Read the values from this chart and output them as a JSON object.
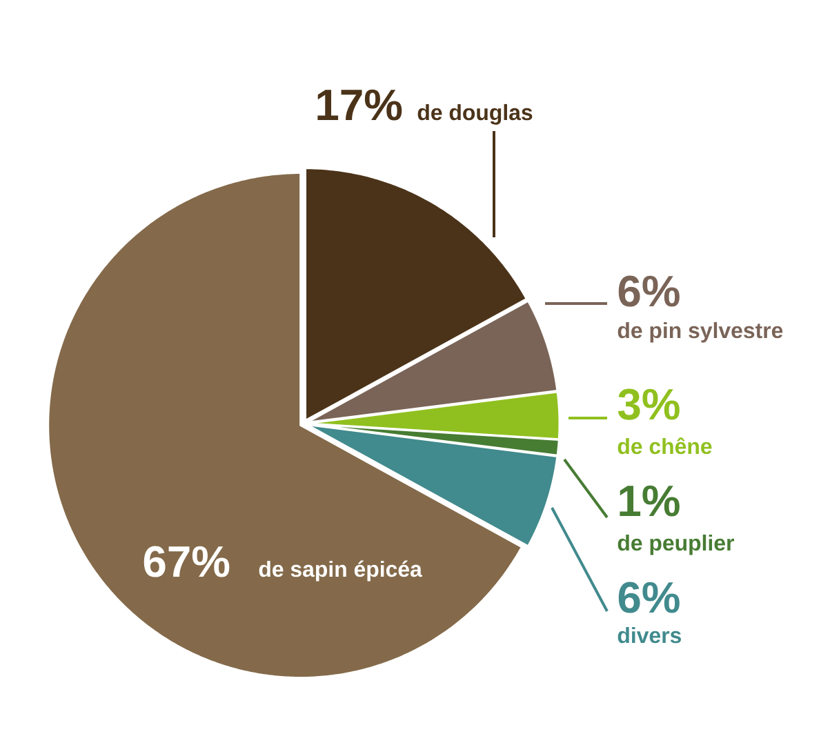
{
  "chart_data": {
    "type": "pie",
    "categories": [
      "de douglas",
      "de pin sylvestre",
      "de chêne",
      "de peuplier",
      "divers",
      "de sapin épicéa"
    ],
    "values": [
      17,
      6,
      3,
      1,
      6,
      67
    ],
    "colors": [
      "#4b3319",
      "#7a6457",
      "#90c01f",
      "#477c33",
      "#418a8d",
      "#846a4a"
    ],
    "value_labels": [
      "17%",
      "6%",
      "3%",
      "1%",
      "6%",
      "67%"
    ]
  }
}
